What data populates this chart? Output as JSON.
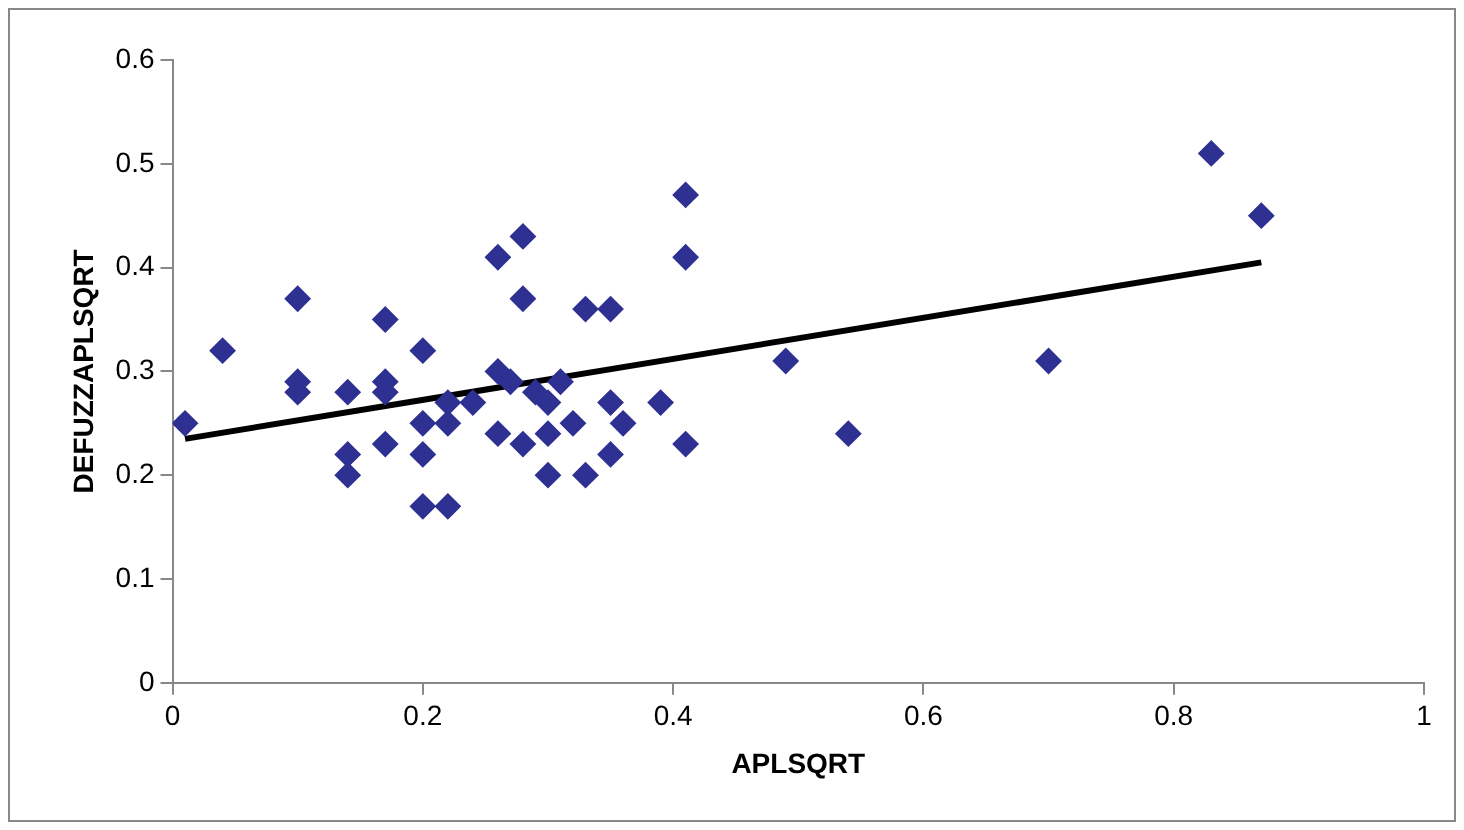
{
  "chart_data": {
    "type": "scatter",
    "xlabel": "APLSQRT",
    "ylabel": "DEFUZZAPLSQRT",
    "xlim": [
      0,
      1
    ],
    "xticks": [
      0,
      0.2,
      0.4,
      0.6,
      0.8,
      1
    ],
    "ylim": [
      0,
      0.6
    ],
    "yticks": [
      0,
      0.1,
      0.2,
      0.3,
      0.4,
      0.5,
      0.6
    ],
    "grid": false,
    "legend": false,
    "series": [
      {
        "marker": "diamond",
        "color": "#2e3192",
        "x": [
          0.01,
          0.04,
          0.1,
          0.1,
          0.1,
          0.14,
          0.14,
          0.14,
          0.17,
          0.17,
          0.17,
          0.17,
          0.2,
          0.2,
          0.2,
          0.2,
          0.22,
          0.22,
          0.22,
          0.24,
          0.26,
          0.28,
          0.28,
          0.26,
          0.27,
          0.26,
          0.28,
          0.29,
          0.3,
          0.3,
          0.3,
          0.31,
          0.32,
          0.33,
          0.35,
          0.33,
          0.35,
          0.35,
          0.36,
          0.39,
          0.41,
          0.41,
          0.41,
          0.49,
          0.54,
          0.7,
          0.83,
          0.87
        ],
        "values": [
          0.25,
          0.32,
          0.37,
          0.29,
          0.28,
          0.28,
          0.22,
          0.2,
          0.35,
          0.29,
          0.28,
          0.23,
          0.32,
          0.25,
          0.22,
          0.17,
          0.17,
          0.27,
          0.25,
          0.27,
          0.41,
          0.43,
          0.37,
          0.3,
          0.29,
          0.24,
          0.23,
          0.28,
          0.27,
          0.24,
          0.2,
          0.29,
          0.25,
          0.36,
          0.36,
          0.2,
          0.27,
          0.22,
          0.25,
          0.27,
          0.47,
          0.41,
          0.23,
          0.31,
          0.24,
          0.31,
          0.51,
          0.45
        ]
      },
      {
        "type": "line",
        "color": "#000000",
        "x": [
          0.01,
          0.87
        ],
        "values": [
          0.235,
          0.405
        ]
      }
    ]
  }
}
